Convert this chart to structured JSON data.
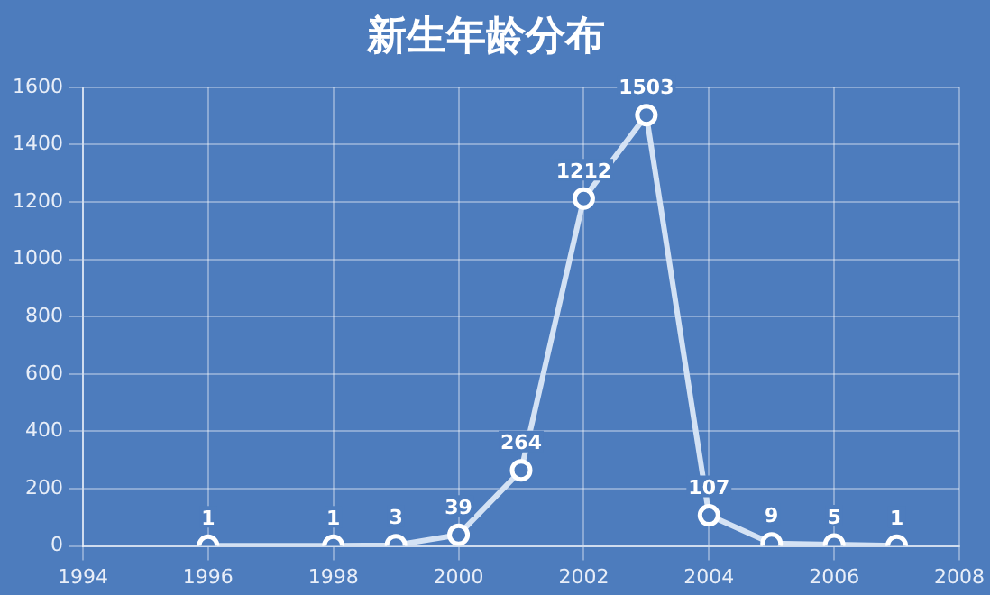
{
  "chart_data": {
    "type": "line",
    "title": "新生年龄分布",
    "x": [
      1996,
      1998,
      1999,
      2000,
      2001,
      2002,
      2003,
      2004,
      2005,
      2006,
      2007
    ],
    "series": [
      {
        "color": "#d4e2f4",
        "values": [
          1,
          1,
          3,
          39,
          264,
          1212,
          1503,
          107,
          9,
          5,
          1
        ]
      }
    ],
    "xlim": [
      1994,
      2008
    ],
    "xticks": [
      1994,
      1996,
      1998,
      2000,
      2002,
      2004,
      2006,
      2008
    ],
    "ylim": [
      0,
      1600
    ],
    "yticks": [
      0,
      200,
      400,
      600,
      800,
      1000,
      1200,
      1400,
      1600
    ],
    "grid": true,
    "legend": false,
    "marker": "circle",
    "line_style": "solid",
    "data_labels": true
  }
}
